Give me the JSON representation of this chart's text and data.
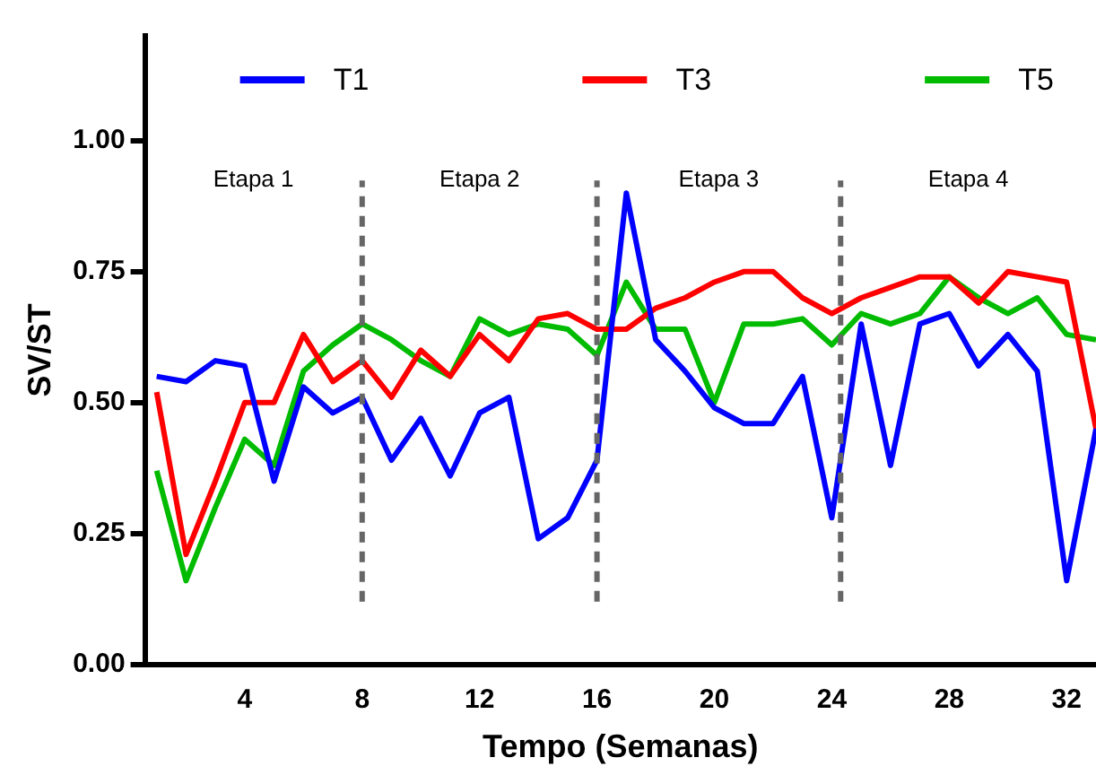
{
  "chart_data": {
    "type": "line",
    "xlabel": "Tempo (Semanas)",
    "ylabel": "SV/ST",
    "x": [
      1,
      2,
      3,
      4,
      5,
      6,
      7,
      8,
      9,
      10,
      11,
      12,
      13,
      14,
      15,
      16,
      17,
      18,
      19,
      20,
      21,
      22,
      23,
      24,
      25,
      26,
      27,
      28,
      29,
      30,
      31,
      32,
      33
    ],
    "series": [
      {
        "name": "T1",
        "color": "#0000ff",
        "values": [
          0.55,
          0.54,
          0.58,
          0.57,
          0.35,
          0.53,
          0.48,
          0.51,
          0.39,
          0.47,
          0.36,
          0.48,
          0.51,
          0.24,
          0.28,
          0.39,
          0.9,
          0.62,
          0.56,
          0.49,
          0.46,
          0.46,
          0.55,
          0.28,
          0.65,
          0.38,
          0.65,
          0.67,
          0.57,
          0.63,
          0.56,
          0.16,
          0.45
        ]
      },
      {
        "name": "T3",
        "color": "#ff0000",
        "values": [
          0.52,
          0.21,
          0.35,
          0.5,
          0.5,
          0.63,
          0.54,
          0.58,
          0.51,
          0.6,
          0.55,
          0.63,
          0.58,
          0.66,
          0.67,
          0.64,
          0.64,
          0.68,
          0.7,
          0.73,
          0.75,
          0.75,
          0.7,
          0.67,
          0.7,
          0.72,
          0.74,
          0.74,
          0.69,
          0.75,
          0.74,
          0.73,
          0.45
        ]
      },
      {
        "name": "T5",
        "color": "#00bb00",
        "values": [
          0.37,
          0.16,
          0.3,
          0.43,
          0.38,
          0.56,
          0.61,
          0.65,
          0.62,
          0.58,
          0.55,
          0.66,
          0.63,
          0.65,
          0.64,
          0.59,
          0.73,
          0.64,
          0.64,
          0.5,
          0.65,
          0.65,
          0.66,
          0.61,
          0.67,
          0.65,
          0.67,
          0.74,
          0.7,
          0.67,
          0.7,
          0.63,
          0.62
        ]
      }
    ],
    "xlim": [
      0.6,
      33
    ],
    "xticks": [
      4,
      8,
      12,
      16,
      20,
      24,
      28,
      32
    ],
    "ylim": [
      0,
      1.2
    ],
    "yticks": [
      {
        "value": 0,
        "label": "0.00"
      },
      {
        "value": 0.25,
        "label": "0.25"
      },
      {
        "value": 0.5,
        "label": "0.50"
      },
      {
        "value": 0.75,
        "label": "0.75"
      },
      {
        "value": 1,
        "label": "1.00"
      }
    ],
    "ref_lines": [
      {
        "axis": "x",
        "value": 8,
        "color": "#666666",
        "line_style": "dashed"
      },
      {
        "axis": "x",
        "value": 16,
        "color": "#666666",
        "line_style": "dashed"
      },
      {
        "axis": "x",
        "value": 24.3,
        "color": "#666666",
        "line_style": "dashed"
      }
    ],
    "annotations": [
      "Etapa 1",
      "Etapa 2",
      "Etapa 3",
      "Etapa 4"
    ],
    "grid": false,
    "legend": "top",
    "marker": "none",
    "line_style": "solid"
  }
}
